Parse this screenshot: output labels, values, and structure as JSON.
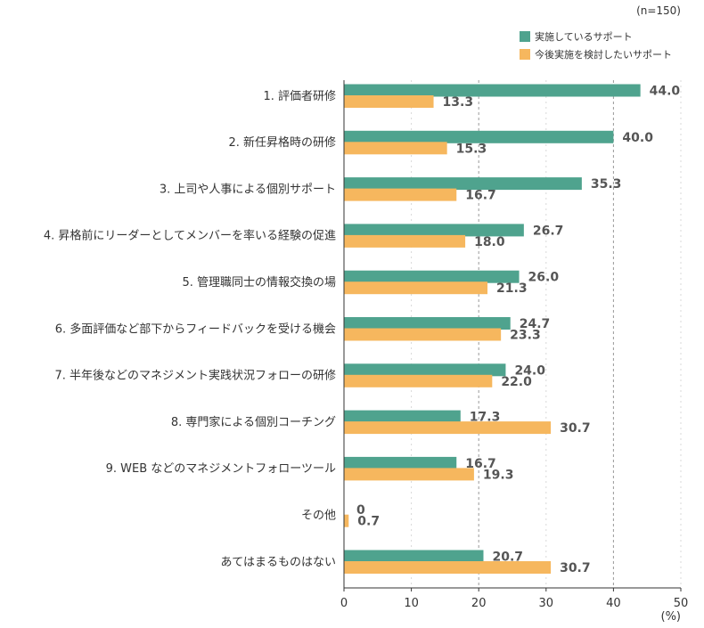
{
  "chart_data": {
    "type": "bar",
    "orientation": "horizontal",
    "sample_note": "(n=150)",
    "unit_label": "(%)",
    "categories": [
      "1. 評価者研修",
      "2. 新任昇格時の研修",
      "3. 上司や人事による個別サポート",
      "4. 昇格前にリーダーとしてメンバーを率いる経験の促進",
      "5. 管理職同士の情報交換の場",
      "6. 多面評価など部下からフィードバックを受ける機会",
      "7. 半年後などのマネジメント実践状況フォローの研修",
      "8. 専門家による個別コーチング",
      "9. WEB などのマネジメントフォローツール",
      "その他",
      "あてはまるものはない"
    ],
    "series": [
      {
        "name": "実施しているサポート",
        "color": "#4fa38e",
        "values": [
          44.0,
          40.0,
          35.3,
          26.7,
          26.0,
          24.7,
          24.0,
          17.3,
          16.7,
          0,
          20.7
        ],
        "labels": [
          "44.0",
          "40.0",
          "35.3",
          "26.7",
          "26.0",
          "24.7",
          "24.0",
          "17.3",
          "16.7",
          "0",
          "20.7"
        ]
      },
      {
        "name": "今後実施を検討したいサポート",
        "color": "#f6b75e",
        "values": [
          13.3,
          15.3,
          16.7,
          18.0,
          21.3,
          23.3,
          22.0,
          30.7,
          19.3,
          0.7,
          30.7
        ],
        "labels": [
          "13.3",
          "15.3",
          "16.7",
          "18.0",
          "21.3",
          "23.3",
          "22.0",
          "30.7",
          "19.3",
          "0.7",
          "30.7"
        ]
      }
    ],
    "xlim": [
      0,
      50
    ],
    "xticks": [
      0,
      10,
      20,
      30,
      40,
      50
    ],
    "xtick_labels": [
      "0",
      "10",
      "20",
      "30",
      "40",
      "50"
    ],
    "legend_position": "top-right"
  }
}
